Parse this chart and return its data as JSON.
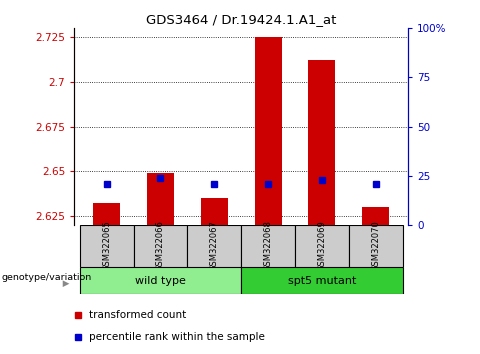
{
  "title": "GDS3464 / Dr.19424.1.A1_at",
  "samples": [
    "GSM322065",
    "GSM322066",
    "GSM322067",
    "GSM322068",
    "GSM322069",
    "GSM322070"
  ],
  "transformed_counts": [
    2.632,
    2.649,
    2.635,
    2.725,
    2.712,
    2.63
  ],
  "percentile_values": [
    2.643,
    2.646,
    2.643,
    2.643,
    2.645,
    2.643
  ],
  "ylim_left": [
    2.62,
    2.73
  ],
  "ylim_right": [
    0,
    100
  ],
  "yticks_left": [
    2.625,
    2.65,
    2.675,
    2.7,
    2.725
  ],
  "yticks_right": [
    0,
    25,
    50,
    75,
    100
  ],
  "right_tick_labels": [
    "0",
    "25",
    "50",
    "75",
    "100%"
  ],
  "left_axis_color": "#cc0000",
  "right_axis_color": "#0000cc",
  "bar_color": "#cc0000",
  "dot_color": "#0000cc",
  "bar_width": 0.5,
  "legend_tc": "transformed count",
  "legend_pr": "percentile rank within the sample",
  "group_spans": [
    [
      0,
      2,
      "wild type",
      "#90ee90"
    ],
    [
      3,
      5,
      "spt5 mutant",
      "#33cc33"
    ]
  ],
  "sample_box_color": "#cccccc",
  "gv_label": "genotype/variation"
}
